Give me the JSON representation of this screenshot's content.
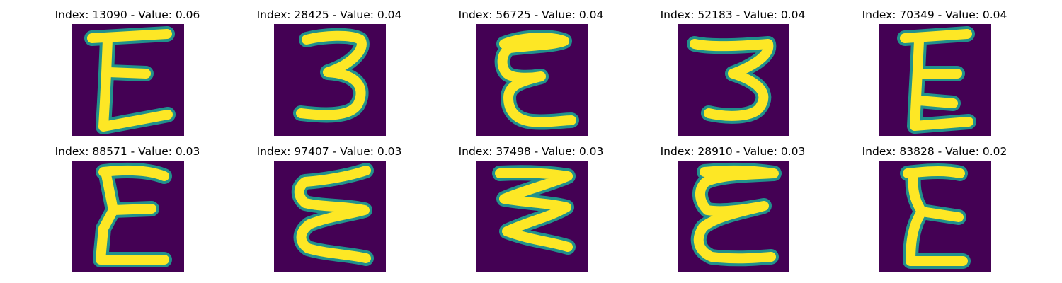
{
  "panels": [
    {
      "title": "Index: 13090 - Value: 0.06",
      "glyph": "E"
    },
    {
      "title": "Index: 28425 - Value: 0.04",
      "glyph": "3"
    },
    {
      "title": "Index: 56725 - Value: 0.04",
      "glyph": "epsilon"
    },
    {
      "title": "Index: 52183 - Value: 0.04",
      "glyph": "3"
    },
    {
      "title": "Index: 70349 - Value: 0.04",
      "glyph": "E"
    },
    {
      "title": "Index: 88571 - Value: 0.03",
      "glyph": "E"
    },
    {
      "title": "Index: 97407 - Value: 0.03",
      "glyph": "E-wavy"
    },
    {
      "title": "Index: 37498 - Value: 0.03",
      "glyph": "E-wavy"
    },
    {
      "title": "Index: 28910 - Value: 0.03",
      "glyph": "epsilon"
    },
    {
      "title": "Index: 83828 - Value: 0.02",
      "glyph": "E"
    }
  ],
  "colors": {
    "background": "#440154",
    "stroke_edge": "#21918c",
    "stroke_core": "#fde725"
  }
}
